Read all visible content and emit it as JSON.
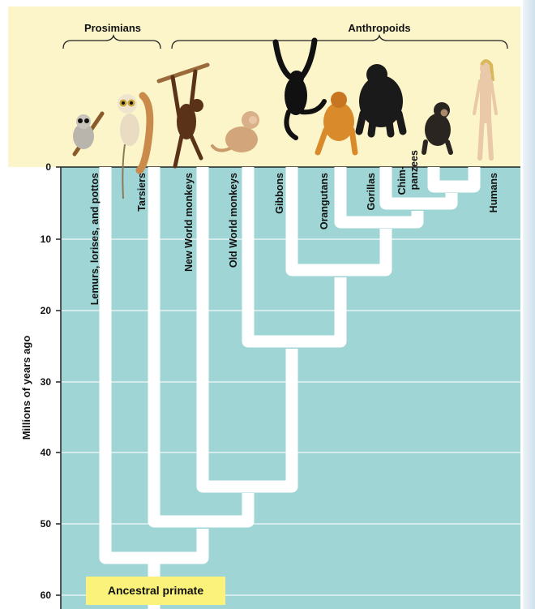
{
  "groups": {
    "prosimians": "Prosimians",
    "anthropoids": "Anthropoids"
  },
  "taxa": [
    "Lemurs, lorises, and pottos",
    "Tarsiers",
    "New World monkeys",
    "Old World monkeys",
    "Gibbons",
    "Orangutans",
    "Gorillas",
    "Chim-",
    "panzees",
    "Humans"
  ],
  "axis": {
    "title": "Millions of years ago",
    "ticks": [
      "0",
      "10",
      "20",
      "30",
      "40",
      "50",
      "60"
    ]
  },
  "ancestor_label": "Ancestral primate",
  "colors": {
    "top_band": "#fcf5c9",
    "plot_bg": "#9fd6d5",
    "branch": "#ffffff",
    "gridline": "#e6f4f3",
    "ancestor_box": "#fbf27c"
  },
  "animal_icons": [
    "loris-icon",
    "tarsier-icon",
    "spider-monkey-icon",
    "macaque-icon",
    "gibbon-icon",
    "orangutan-icon",
    "gorilla-icon",
    "chimpanzee-icon",
    "human-icon"
  ]
}
